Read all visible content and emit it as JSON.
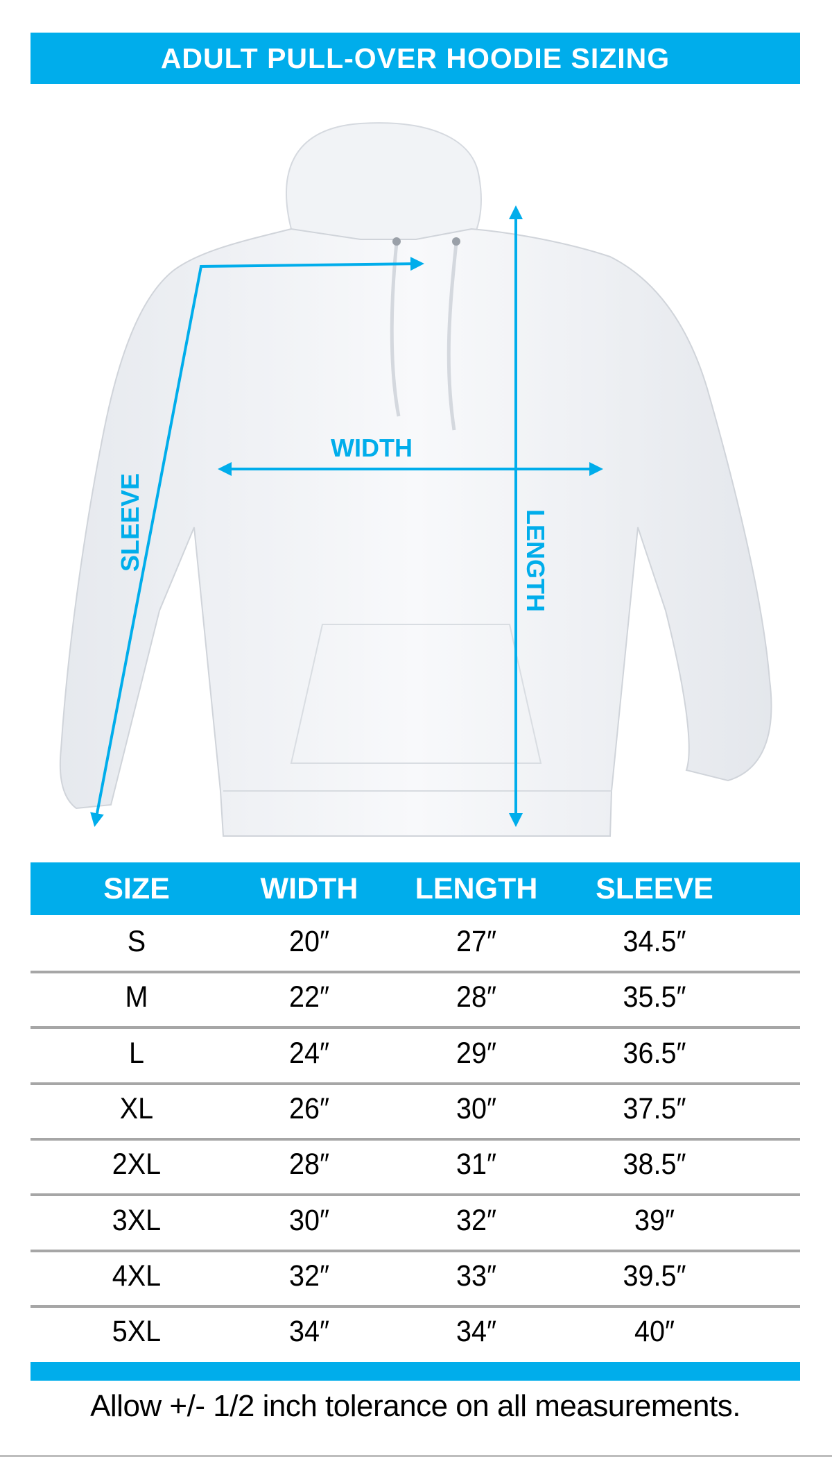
{
  "title": "ADULT PULL-OVER HOODIE SIZING",
  "diagram": {
    "labels": {
      "width": "WIDTH",
      "length": "LENGTH",
      "sleeve": "SLEEVE"
    },
    "arrow_color": "#00adeb"
  },
  "table": {
    "headers": [
      "SIZE",
      "WIDTH",
      "LENGTH",
      "SLEEVE"
    ],
    "rows": [
      [
        "S",
        "20″",
        "27″",
        "34.5″"
      ],
      [
        "M",
        "22″",
        "28″",
        "35.5″"
      ],
      [
        "L",
        "24″",
        "29″",
        "36.5″"
      ],
      [
        "XL",
        "26″",
        "30″",
        "37.5″"
      ],
      [
        "2XL",
        "28″",
        "31″",
        "38.5″"
      ],
      [
        "3XL",
        "30″",
        "32″",
        "39″"
      ],
      [
        "4XL",
        "32″",
        "33″",
        "39.5″"
      ],
      [
        "5XL",
        "34″",
        "34″",
        "40″"
      ]
    ]
  },
  "footer": "Allow +/- 1/2 inch tolerance on all measurements.",
  "colors": {
    "accent": "#00adeb",
    "separator": "#a6a6a6"
  }
}
